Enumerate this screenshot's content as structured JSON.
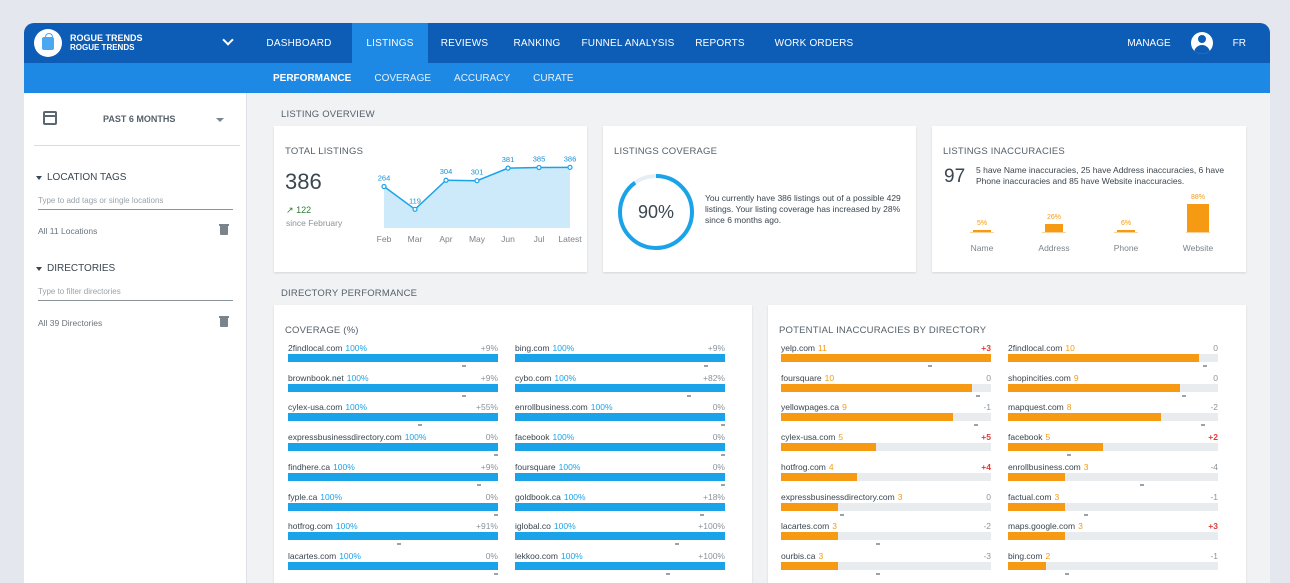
{
  "brand": {
    "name": "ROGUE TRENDS",
    "sub": "ROGUE TRENDS"
  },
  "nav": {
    "items": [
      "DASHBOARD",
      "LISTINGS",
      "REVIEWS",
      "RANKING",
      "FUNNEL ANALYSIS",
      "REPORTS",
      "WORK ORDERS"
    ],
    "active": 1,
    "manage": "MANAGE",
    "lang": "FR"
  },
  "subnav": {
    "items": [
      "PERFORMANCE",
      "COVERAGE",
      "ACCURACY",
      "CURATE"
    ],
    "active": 0
  },
  "sidebar": {
    "period": "PAST 6 MONTHS",
    "location_tags_title": "LOCATION TAGS",
    "location_placeholder": "Type to add tags or single locations",
    "all_locations": "All 11 Locations",
    "directories_title": "DIRECTORIES",
    "directories_placeholder": "Type to filter directories",
    "all_directories": "All 39 Directories"
  },
  "overview": {
    "section_title": "LISTING OVERVIEW",
    "total": {
      "title": "TOTAL LISTINGS",
      "value": "386",
      "growth": "122",
      "since": "since February"
    },
    "coverage": {
      "title": "LISTINGS COVERAGE",
      "percent": "90%",
      "percent_value": 90,
      "text": "You currently have 386 listings out of a possible 429 listings. Your listing coverage has increased by 28% since 6 months ago."
    },
    "inaccuracies": {
      "title": "LISTINGS INACCURACIES",
      "value": "97",
      "text": "5 have Name inaccuracies, 25 have Address inaccuracies, 6 have Phone inaccuracies and 85 have Website inaccuracies.",
      "bars": [
        {
          "label": "Name",
          "pct": "5%",
          "value": 5
        },
        {
          "label": "Address",
          "pct": "26%",
          "value": 26
        },
        {
          "label": "Phone",
          "pct": "6%",
          "value": 6
        },
        {
          "label": "Website",
          "pct": "88%",
          "value": 88
        }
      ]
    }
  },
  "chart_data": {
    "type": "area",
    "categories": [
      "Feb",
      "Mar",
      "Apr",
      "May",
      "Jun",
      "Jul",
      "Latest"
    ],
    "values": [
      264,
      119,
      304,
      301,
      381,
      385,
      386
    ],
    "ylim": [
      0,
      420
    ]
  },
  "colors": {
    "primary": "#0d5cb5",
    "accent": "#1e88e5",
    "coverage": "#1aa3e8",
    "inaccuracy": "#f59a12",
    "negative": "#e53935"
  },
  "directory": {
    "section_title": "DIRECTORY PERFORMANCE",
    "coverage_title": "COVERAGE (%)",
    "inacc_title": "POTENTIAL INACCURACIES BY DIRECTORY",
    "coverage_left": [
      {
        "name": "2findlocal.com",
        "value": "100%",
        "fill": 100,
        "change": "+9%",
        "mark": 83
      },
      {
        "name": "brownbook.net",
        "value": "100%",
        "fill": 100,
        "change": "+9%",
        "mark": 83
      },
      {
        "name": "cylex-usa.com",
        "value": "100%",
        "fill": 100,
        "change": "+55%",
        "mark": 62
      },
      {
        "name": "expressbusinessdirectory.com",
        "value": "100%",
        "fill": 100,
        "change": "0%",
        "mark": 98
      },
      {
        "name": "findhere.ca",
        "value": "100%",
        "fill": 100,
        "change": "+9%",
        "mark": 90
      },
      {
        "name": "fyple.ca",
        "value": "100%",
        "fill": 100,
        "change": "0%",
        "mark": 98
      },
      {
        "name": "hotfrog.com",
        "value": "100%",
        "fill": 100,
        "change": "+91%",
        "mark": 52
      },
      {
        "name": "lacartes.com",
        "value": "100%",
        "fill": 100,
        "change": "0%",
        "mark": 98
      }
    ],
    "coverage_right": [
      {
        "name": "bing.com",
        "value": "100%",
        "fill": 100,
        "change": "+9%",
        "mark": 90
      },
      {
        "name": "cybo.com",
        "value": "100%",
        "fill": 100,
        "change": "+82%",
        "mark": 82
      },
      {
        "name": "enrollbusiness.com",
        "value": "100%",
        "fill": 100,
        "change": "0%",
        "mark": 98
      },
      {
        "name": "facebook",
        "value": "100%",
        "fill": 100,
        "change": "0%",
        "mark": 98
      },
      {
        "name": "foursquare",
        "value": "100%",
        "fill": 100,
        "change": "0%",
        "mark": 98
      },
      {
        "name": "goldbook.ca",
        "value": "100%",
        "fill": 100,
        "change": "+18%",
        "mark": 88
      },
      {
        "name": "iglobal.co",
        "value": "100%",
        "fill": 100,
        "change": "+100%",
        "mark": 76
      },
      {
        "name": "lekkoo.com",
        "value": "100%",
        "fill": 100,
        "change": "+100%",
        "mark": 72
      }
    ],
    "inacc_left": [
      {
        "name": "yelp.com",
        "value": "11",
        "fill": 100,
        "change": "+3",
        "dir": "up",
        "mark": 70
      },
      {
        "name": "foursquare",
        "value": "10",
        "fill": 91,
        "change": "0",
        "dir": "none",
        "mark": 93
      },
      {
        "name": "yellowpages.ca",
        "value": "9",
        "fill": 82,
        "change": "-1",
        "dir": "down",
        "mark": 92
      },
      {
        "name": "cylex-usa.com",
        "value": "5",
        "fill": 45,
        "change": "+5",
        "dir": "up",
        "mark": 0
      },
      {
        "name": "hotfrog.com",
        "value": "4",
        "fill": 36,
        "change": "+4",
        "dir": "up",
        "mark": 0
      },
      {
        "name": "expressbusinessdirectory.com",
        "value": "3",
        "fill": 27,
        "change": "0",
        "dir": "none",
        "mark": 28
      },
      {
        "name": "lacartes.com",
        "value": "3",
        "fill": 27,
        "change": "-2",
        "dir": "down",
        "mark": 45
      },
      {
        "name": "ourbis.ca",
        "value": "3",
        "fill": 27,
        "change": "-3",
        "dir": "down",
        "mark": 45
      }
    ],
    "inacc_right": [
      {
        "name": "2findlocal.com",
        "value": "10",
        "fill": 91,
        "change": "0",
        "dir": "none",
        "mark": 93
      },
      {
        "name": "shopincities.com",
        "value": "9",
        "fill": 82,
        "change": "0",
        "dir": "none",
        "mark": 83
      },
      {
        "name": "mapquest.com",
        "value": "8",
        "fill": 73,
        "change": "-2",
        "dir": "down",
        "mark": 92
      },
      {
        "name": "facebook",
        "value": "5",
        "fill": 45,
        "change": "+2",
        "dir": "up",
        "mark": 28
      },
      {
        "name": "enrollbusiness.com",
        "value": "3",
        "fill": 27,
        "change": "-4",
        "dir": "down",
        "mark": 63
      },
      {
        "name": "factual.com",
        "value": "3",
        "fill": 27,
        "change": "-1",
        "dir": "down",
        "mark": 36
      },
      {
        "name": "maps.google.com",
        "value": "3",
        "fill": 27,
        "change": "+3",
        "dir": "up",
        "mark": 0
      },
      {
        "name": "bing.com",
        "value": "2",
        "fill": 18,
        "change": "-1",
        "dir": "down",
        "mark": 27
      }
    ]
  }
}
